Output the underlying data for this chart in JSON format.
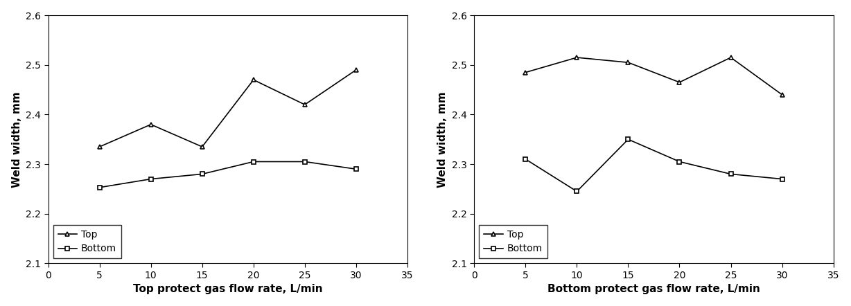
{
  "left": {
    "xlabel": "Top protect gas flow rate, L/min",
    "ylabel": "Weld width, mm",
    "x": [
      5,
      10,
      15,
      20,
      25,
      30
    ],
    "top_y": [
      2.335,
      2.38,
      2.335,
      2.47,
      2.42,
      2.49
    ],
    "bottom_y": [
      2.253,
      2.27,
      2.28,
      2.305,
      2.305,
      2.29
    ],
    "xlim": [
      0,
      35
    ],
    "ylim": [
      2.1,
      2.6
    ],
    "yticks": [
      2.1,
      2.2,
      2.3,
      2.4,
      2.5,
      2.6
    ],
    "xticks": [
      0,
      5,
      10,
      15,
      20,
      25,
      30,
      35
    ]
  },
  "right": {
    "xlabel": "Bottom protect gas flow rate, L/min",
    "ylabel": "Weld width, mm",
    "x": [
      5,
      10,
      15,
      20,
      25,
      30
    ],
    "top_y": [
      2.485,
      2.515,
      2.505,
      2.465,
      2.515,
      2.44
    ],
    "bottom_y": [
      2.31,
      2.245,
      2.35,
      2.305,
      2.28,
      2.27
    ],
    "xlim": [
      0,
      35
    ],
    "ylim": [
      2.1,
      2.6
    ],
    "yticks": [
      2.1,
      2.2,
      2.3,
      2.4,
      2.5,
      2.6
    ],
    "xticks": [
      0,
      5,
      10,
      15,
      20,
      25,
      30,
      35
    ]
  },
  "line_color": "#000000",
  "marker_top": "^",
  "marker_bottom": "s",
  "markersize": 5,
  "linewidth": 1.2,
  "legend_top": "Top",
  "legend_bottom": "Bottom",
  "font_size": 10,
  "tick_font_size": 10,
  "label_font_size": 11
}
